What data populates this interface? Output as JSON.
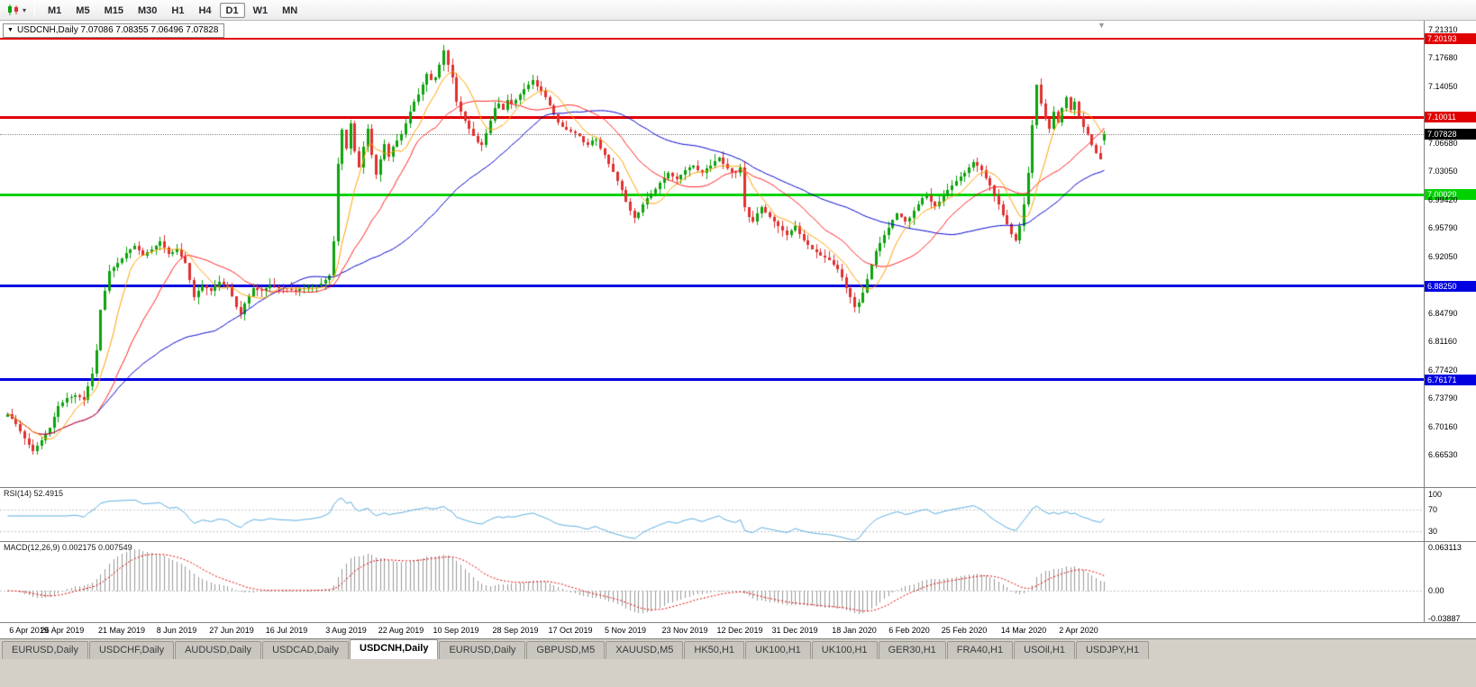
{
  "toolbar": {
    "timeframes": [
      {
        "label": "M1",
        "active": false
      },
      {
        "label": "M5",
        "active": false
      },
      {
        "label": "M15",
        "active": false
      },
      {
        "label": "M30",
        "active": false
      },
      {
        "label": "H1",
        "active": false
      },
      {
        "label": "H4",
        "active": false
      },
      {
        "label": "D1",
        "active": true
      },
      {
        "label": "W1",
        "active": false
      },
      {
        "label": "MN",
        "active": false
      }
    ]
  },
  "chart": {
    "title": "USDCNH,Daily 7.07086 7.08355 7.06496 7.07828",
    "y_ticks": [
      "7.21310",
      "7.17680",
      "7.14050",
      "7.06680",
      "7.03050",
      "6.99420",
      "6.95790",
      "6.92050",
      "6.84790",
      "6.81160",
      "6.77420",
      "6.73790",
      "6.70160",
      "6.66530"
    ],
    "price_lines": [
      {
        "value": 7.20193,
        "label": "7.20193",
        "color": "#E00000",
        "thickness": 2
      },
      {
        "value": 7.10011,
        "label": "7.10011",
        "color": "#E00000",
        "thickness": 3
      },
      {
        "value": 7.00029,
        "label": "7.00029",
        "color": "#00D200",
        "thickness": 3
      },
      {
        "value": 6.8825,
        "label": "6.88250",
        "color": "#0000E0",
        "thickness": 3
      },
      {
        "value": 6.76171,
        "label": "6.76171",
        "color": "#0000E0",
        "thickness": 3
      }
    ],
    "current_price": {
      "value": 7.07828,
      "label": "7.07828",
      "bg": "#000000",
      "fg": "#FFFFFF"
    }
  },
  "rsi_panel": {
    "label": "RSI(14) 52.4915",
    "axis_labels": [
      {
        "text": "100",
        "value": 100
      },
      {
        "text": "70",
        "value": 70
      },
      {
        "text": "30",
        "value": 30
      }
    ],
    "levels": [
      70,
      30
    ],
    "line_color": "#58ABDF"
  },
  "macd_panel": {
    "label": "MACD(12,26,9) 0.002175 0.007549",
    "axis_labels": [
      {
        "text": "0.063113",
        "value": 0.063113
      },
      {
        "text": "0.00",
        "value": 0
      },
      {
        "text": "-0.03887",
        "value": -0.03887
      }
    ],
    "scale_max": 0.063113,
    "scale_min": -0.03887,
    "histogram_color": "#9A9A9A",
    "signal_color": "#E00000"
  },
  "x_axis": {
    "labels": [
      {
        "text": "6 Apr 2019",
        "idx": 0
      },
      {
        "text": "26 Apr 2019",
        "idx": 13
      },
      {
        "text": "21 May 2019",
        "idx": 27
      },
      {
        "text": "8 Jun 2019",
        "idx": 40
      },
      {
        "text": "27 Jun 2019",
        "idx": 53
      },
      {
        "text": "16 Jul 2019",
        "idx": 66
      },
      {
        "text": "3 Aug 2019",
        "idx": 80
      },
      {
        "text": "22 Aug 2019",
        "idx": 93
      },
      {
        "text": "10 Sep 2019",
        "idx": 106
      },
      {
        "text": "28 Sep 2019",
        "idx": 120
      },
      {
        "text": "17 Oct 2019",
        "idx": 133
      },
      {
        "text": "5 Nov 2019",
        "idx": 146
      },
      {
        "text": "23 Nov 2019",
        "idx": 160
      },
      {
        "text": "12 Dec 2019",
        "idx": 173
      },
      {
        "text": "31 Dec 2019",
        "idx": 186
      },
      {
        "text": "18 Jan 2020",
        "idx": 200
      },
      {
        "text": "6 Feb 2020",
        "idx": 213
      },
      {
        "text": "25 Feb 2020",
        "idx": 226
      },
      {
        "text": "14 Mar 2020",
        "idx": 240
      },
      {
        "text": "2 Apr 2020",
        "idx": 253
      }
    ]
  },
  "tabs": [
    {
      "label": "EURUSD,Daily",
      "active": false
    },
    {
      "label": "USDCHF,Daily",
      "active": false
    },
    {
      "label": "AUDUSD,Daily",
      "active": false
    },
    {
      "label": "USDCAD,Daily",
      "active": false
    },
    {
      "label": "USDCNH,Daily",
      "active": true
    },
    {
      "label": "EURUSD,Daily",
      "active": false
    },
    {
      "label": "GBPUSD,M5",
      "active": false
    },
    {
      "label": "XAUUSD,M5",
      "active": false
    },
    {
      "label": "HK50,H1",
      "active": false
    },
    {
      "label": "UK100,H1",
      "active": false
    },
    {
      "label": "UK100,H1",
      "active": false
    },
    {
      "label": "GER30,H1",
      "active": false
    },
    {
      "label": "FRA40,H1",
      "active": false
    },
    {
      "label": "USOil,H1",
      "active": false
    },
    {
      "label": "USDJPY,H1",
      "active": false
    }
  ],
  "chart_data": {
    "type": "candlestick",
    "symbol": "USDCNH",
    "timeframe": "Daily",
    "current_ohlc": {
      "open": 7.07086,
      "high": 7.08355,
      "low": 7.06496,
      "close": 7.07828
    },
    "y_range": [
      6.6653,
      7.2131
    ],
    "candle_count": 260,
    "up_color": "#0CA30C",
    "down_color": "#E03030",
    "ma_lines": [
      {
        "period": 8,
        "color": "#FFA000"
      },
      {
        "period": 20,
        "color": "#FF2020"
      },
      {
        "period": 50,
        "color": "#0000CC"
      }
    ],
    "close_anchors": [
      [
        0,
        6.718
      ],
      [
        2,
        6.705
      ],
      [
        4,
        6.686
      ],
      [
        6,
        6.67
      ],
      [
        8,
        6.684
      ],
      [
        10,
        6.7
      ],
      [
        12,
        6.728
      ],
      [
        14,
        6.738
      ],
      [
        16,
        6.742
      ],
      [
        18,
        6.736
      ],
      [
        20,
        6.77
      ],
      [
        21,
        6.8
      ],
      [
        22,
        6.852
      ],
      [
        24,
        6.902
      ],
      [
        26,
        6.912
      ],
      [
        28,
        6.925
      ],
      [
        30,
        6.935
      ],
      [
        32,
        6.922
      ],
      [
        34,
        6.93
      ],
      [
        36,
        6.94
      ],
      [
        38,
        6.924
      ],
      [
        40,
        6.93
      ],
      [
        42,
        6.912
      ],
      [
        44,
        6.868
      ],
      [
        46,
        6.884
      ],
      [
        48,
        6.876
      ],
      [
        50,
        6.888
      ],
      [
        52,
        6.882
      ],
      [
        54,
        6.856
      ],
      [
        55,
        6.846
      ],
      [
        56,
        6.86
      ],
      [
        58,
        6.88
      ],
      [
        60,
        6.876
      ],
      [
        62,
        6.884
      ],
      [
        64,
        6.88
      ],
      [
        66,
        6.879
      ],
      [
        68,
        6.877
      ],
      [
        70,
        6.88
      ],
      [
        72,
        6.882
      ],
      [
        74,
        6.886
      ],
      [
        76,
        6.896
      ],
      [
        77,
        6.94
      ],
      [
        78,
        7.04
      ],
      [
        79,
        7.084
      ],
      [
        80,
        7.06
      ],
      [
        81,
        7.092
      ],
      [
        82,
        7.056
      ],
      [
        83,
        7.036
      ],
      [
        84,
        7.062
      ],
      [
        85,
        7.086
      ],
      [
        86,
        7.052
      ],
      [
        87,
        7.026
      ],
      [
        88,
        7.046
      ],
      [
        89,
        7.066
      ],
      [
        90,
        7.05
      ],
      [
        91,
        7.062
      ],
      [
        92,
        7.07
      ],
      [
        93,
        7.078
      ],
      [
        94,
        7.092
      ],
      [
        95,
        7.108
      ],
      [
        96,
        7.12
      ],
      [
        97,
        7.13
      ],
      [
        98,
        7.142
      ],
      [
        99,
        7.156
      ],
      [
        100,
        7.148
      ],
      [
        101,
        7.152
      ],
      [
        102,
        7.168
      ],
      [
        103,
        7.186
      ],
      [
        104,
        7.168
      ],
      [
        105,
        7.152
      ],
      [
        106,
        7.12
      ],
      [
        107,
        7.108
      ],
      [
        108,
        7.096
      ],
      [
        109,
        7.086
      ],
      [
        110,
        7.076
      ],
      [
        111,
        7.068
      ],
      [
        112,
        7.064
      ],
      [
        113,
        7.08
      ],
      [
        114,
        7.096
      ],
      [
        115,
        7.112
      ],
      [
        116,
        7.118
      ],
      [
        117,
        7.11
      ],
      [
        118,
        7.122
      ],
      [
        119,
        7.118
      ],
      [
        120,
        7.122
      ],
      [
        121,
        7.13
      ],
      [
        122,
        7.136
      ],
      [
        123,
        7.142
      ],
      [
        124,
        7.148
      ],
      [
        125,
        7.14
      ],
      [
        126,
        7.134
      ],
      [
        127,
        7.126
      ],
      [
        128,
        7.116
      ],
      [
        129,
        7.104
      ],
      [
        130,
        7.094
      ],
      [
        131,
        7.088
      ],
      [
        132,
        7.084
      ],
      [
        133,
        7.082
      ],
      [
        134,
        7.08
      ],
      [
        135,
        7.076
      ],
      [
        136,
        7.068
      ],
      [
        137,
        7.064
      ],
      [
        138,
        7.07
      ],
      [
        139,
        7.072
      ],
      [
        140,
        7.06
      ],
      [
        141,
        7.052
      ],
      [
        142,
        7.04
      ],
      [
        143,
        7.03
      ],
      [
        144,
        7.018
      ],
      [
        145,
        7.006
      ],
      [
        146,
        6.992
      ],
      [
        147,
        6.98
      ],
      [
        148,
        6.97
      ],
      [
        149,
        6.978
      ],
      [
        150,
        6.988
      ],
      [
        151,
        6.996
      ],
      [
        152,
        7.002
      ],
      [
        153,
        7.008
      ],
      [
        154,
        7.016
      ],
      [
        155,
        7.022
      ],
      [
        156,
        7.028
      ],
      [
        157,
        7.024
      ],
      [
        158,
        7.02
      ],
      [
        159,
        7.026
      ],
      [
        160,
        7.032
      ],
      [
        161,
        7.036
      ],
      [
        162,
        7.038
      ],
      [
        163,
        7.032
      ],
      [
        164,
        7.028
      ],
      [
        165,
        7.034
      ],
      [
        166,
        7.038
      ],
      [
        167,
        7.044
      ],
      [
        168,
        7.048
      ],
      [
        169,
        7.04
      ],
      [
        170,
        7.034
      ],
      [
        171,
        7.03
      ],
      [
        172,
        7.028
      ],
      [
        173,
        7.036
      ],
      [
        174,
        6.984
      ],
      [
        175,
        6.972
      ],
      [
        176,
        6.966
      ],
      [
        177,
        6.976
      ],
      [
        178,
        6.984
      ],
      [
        179,
        6.978
      ],
      [
        180,
        6.972
      ],
      [
        181,
        6.966
      ],
      [
        182,
        6.96
      ],
      [
        183,
        6.954
      ],
      [
        184,
        6.948
      ],
      [
        185,
        6.954
      ],
      [
        186,
        6.96
      ],
      [
        187,
        6.95
      ],
      [
        188,
        6.942
      ],
      [
        189,
        6.936
      ],
      [
        190,
        6.93
      ],
      [
        191,
        6.926
      ],
      [
        192,
        6.922
      ],
      [
        193,
        6.92
      ],
      [
        194,
        6.916
      ],
      [
        195,
        6.91
      ],
      [
        196,
        6.904
      ],
      [
        197,
        6.894
      ],
      [
        198,
        6.88
      ],
      [
        199,
        6.868
      ],
      [
        200,
        6.856
      ],
      [
        201,
        6.862
      ],
      [
        202,
        6.874
      ],
      [
        203,
        6.892
      ],
      [
        204,
        6.91
      ],
      [
        205,
        6.928
      ],
      [
        206,
        6.938
      ],
      [
        207,
        6.948
      ],
      [
        208,
        6.958
      ],
      [
        209,
        6.968
      ],
      [
        210,
        6.976
      ],
      [
        211,
        6.972
      ],
      [
        212,
        6.966
      ],
      [
        213,
        6.97
      ],
      [
        214,
        6.98
      ],
      [
        215,
        6.988
      ],
      [
        216,
        6.996
      ],
      [
        217,
        7.0
      ],
      [
        218,
        6.992
      ],
      [
        219,
        6.986
      ],
      [
        220,
        6.992
      ],
      [
        221,
        7.0
      ],
      [
        222,
        7.006
      ],
      [
        223,
        7.012
      ],
      [
        224,
        7.018
      ],
      [
        225,
        7.024
      ],
      [
        226,
        7.028
      ],
      [
        227,
        7.036
      ],
      [
        228,
        7.042
      ],
      [
        229,
        7.038
      ],
      [
        230,
        7.032
      ],
      [
        231,
        7.022
      ],
      [
        232,
        7.012
      ],
      [
        233,
        7.0
      ],
      [
        234,
        6.988
      ],
      [
        235,
        6.974
      ],
      [
        236,
        6.962
      ],
      [
        237,
        6.95
      ],
      [
        238,
        6.942
      ],
      [
        239,
        6.96
      ],
      [
        240,
        6.988
      ],
      [
        241,
        7.028
      ],
      [
        242,
        7.09
      ],
      [
        243,
        7.142
      ],
      [
        244,
        7.118
      ],
      [
        245,
        7.098
      ],
      [
        246,
        7.086
      ],
      [
        247,
        7.108
      ],
      [
        248,
        7.094
      ],
      [
        249,
        7.112
      ],
      [
        250,
        7.126
      ],
      [
        251,
        7.11
      ],
      [
        252,
        7.12
      ],
      [
        253,
        7.102
      ],
      [
        254,
        7.088
      ],
      [
        255,
        7.078
      ],
      [
        256,
        7.064
      ],
      [
        257,
        7.054
      ],
      [
        258,
        7.046
      ],
      [
        259,
        7.07828
      ]
    ],
    "indicators": [
      {
        "name": "RSI",
        "period": 14,
        "current": 52.4915,
        "range_labels": [
          100,
          70,
          30
        ]
      },
      {
        "name": "MACD",
        "fast": 12,
        "slow": 26,
        "signal": 9,
        "current": [
          0.002175,
          0.007549
        ],
        "scale": [
          -0.03887,
          0.063113
        ]
      }
    ]
  }
}
